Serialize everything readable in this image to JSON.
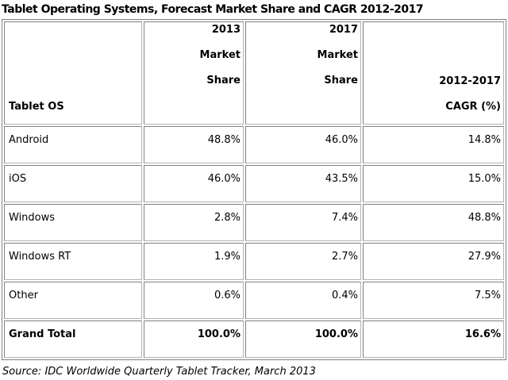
{
  "title": "Tablet Operating Systems, Forecast Market Share and CAGR 2012-2017",
  "table": {
    "header": {
      "tablet_os": "Tablet OS",
      "col_2013": {
        "lines": [
          "2013",
          "Market",
          "Share"
        ]
      },
      "col_2017": {
        "lines": [
          "2017",
          "Market",
          "Share"
        ]
      },
      "col_cagr": {
        "lines": [
          "2012-2017",
          "CAGR (%)"
        ]
      }
    },
    "rows": [
      {
        "os": "Android",
        "share_2013": "48.8%",
        "share_2017": "46.0%",
        "cagr": "14.8%"
      },
      {
        "os": "iOS",
        "share_2013": "46.0%",
        "share_2017": "43.5%",
        "cagr": "15.0%"
      },
      {
        "os": "Windows",
        "share_2013": "2.8%",
        "share_2017": "7.4%",
        "cagr": "48.8%"
      },
      {
        "os": "Windows RT",
        "share_2013": "1.9%",
        "share_2017": "2.7%",
        "cagr": "27.9%"
      },
      {
        "os": "Other",
        "share_2013": "0.6%",
        "share_2017": "0.4%",
        "cagr": "7.5%"
      }
    ],
    "grand_total": {
      "os": "Grand Total",
      "share_2013": "100.0%",
      "share_2017": "100.0%",
      "cagr": "16.6%"
    }
  },
  "source": "Source: IDC Worldwide Quarterly Tablet Tracker, March 2013",
  "colors": {
    "table_border": "#808080",
    "cell_border": "#808080",
    "text": "#000000",
    "background": "#ffffff"
  },
  "chart_data": {
    "type": "table",
    "title": "Tablet Operating Systems, Forecast Market Share and CAGR 2012-2017",
    "columns": [
      "Tablet OS",
      "2013 Market Share",
      "2017 Market Share",
      "2012-2017 CAGR (%)"
    ],
    "units": "percent",
    "rows": [
      {
        "tablet_os": "Android",
        "market_share_2013": 48.8,
        "market_share_2017": 46.0,
        "cagr_2012_2017": 14.8
      },
      {
        "tablet_os": "iOS",
        "market_share_2013": 46.0,
        "market_share_2017": 43.5,
        "cagr_2012_2017": 15.0
      },
      {
        "tablet_os": "Windows",
        "market_share_2013": 2.8,
        "market_share_2017": 7.4,
        "cagr_2012_2017": 48.8
      },
      {
        "tablet_os": "Windows RT",
        "market_share_2013": 1.9,
        "market_share_2017": 2.7,
        "cagr_2012_2017": 27.9
      },
      {
        "tablet_os": "Other",
        "market_share_2013": 0.6,
        "market_share_2017": 0.4,
        "cagr_2012_2017": 7.5
      },
      {
        "tablet_os": "Grand Total",
        "market_share_2013": 100.0,
        "market_share_2017": 100.0,
        "cagr_2012_2017": 16.6
      }
    ],
    "source": "Source: IDC Worldwide Quarterly Tablet Tracker, March 2013"
  }
}
